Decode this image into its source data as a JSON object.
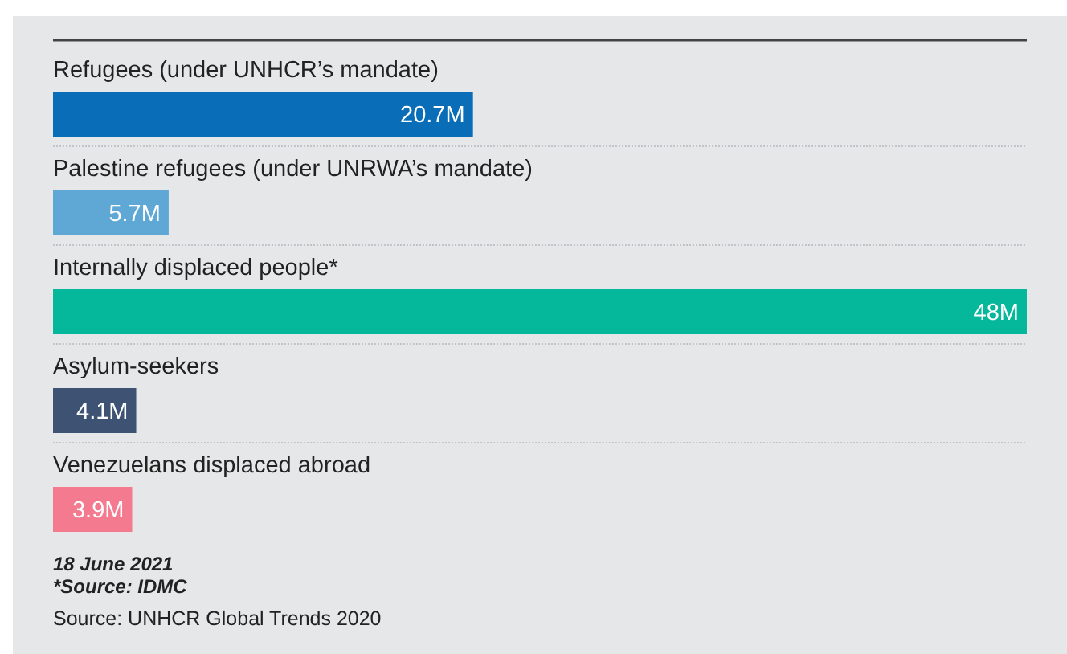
{
  "chart_data": {
    "type": "bar",
    "orientation": "horizontal",
    "categories": [
      "Refugees (under UNHCR’s mandate)",
      "Palestine refugees (under UNRWA’s mandate)",
      "Internally displaced people*",
      "Asylum-seekers",
      "Venezuelans displaced abroad"
    ],
    "values": [
      20.7,
      5.7,
      48,
      4.1,
      3.9
    ],
    "value_labels": [
      "20.7M",
      "5.7M",
      "48M",
      "4.1M",
      "3.9M"
    ],
    "colors": [
      "#0a6db7",
      "#5fa8d6",
      "#05b89c",
      "#3e5374",
      "#f47a8f"
    ],
    "annotations": [
      "18 June 2021",
      "*Source: IDMC",
      "Source: UNHCR Global Trends 2020"
    ]
  }
}
